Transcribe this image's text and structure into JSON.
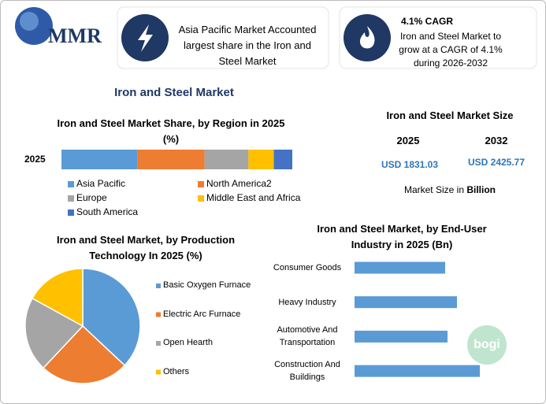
{
  "header": {
    "logo": "MMR",
    "highlight_1": "Asia Pacific Market Accounted largest share in the Iron and Steel Market",
    "highlight_2_title": "4.1% CAGR",
    "highlight_2_text": "Iron and Steel Market to grow at a CAGR of 4.1% during 2026-2032"
  },
  "title": "Iron and Steel Market",
  "market_size": {
    "title": "Iron and Steel Market Size",
    "years": [
      "2025",
      "2032"
    ],
    "values": [
      "USD 1831.03",
      "USD 2425.77"
    ],
    "note": "Market Size in",
    "unit": "Billion"
  },
  "watermark": "bogi",
  "chart_data": [
    {
      "type": "stacked-bar",
      "title": "Iron and Steel Market Share, by Region in 2025 (%)",
      "categories": [
        "2025"
      ],
      "series": [
        {
          "name": "Asia Pacific",
          "color": "#5b9bd5",
          "values": [
            33
          ]
        },
        {
          "name": "North America2",
          "color": "#ed7d31",
          "values": [
            29
          ]
        },
        {
          "name": "Europe",
          "color": "#a5a5a5",
          "values": [
            19
          ]
        },
        {
          "name": "Middle East and Africa",
          "color": "#ffc000",
          "values": [
            11
          ]
        },
        {
          "name": "South America",
          "color": "#4472c4",
          "values": [
            8
          ]
        }
      ]
    },
    {
      "type": "pie",
      "title": "Iron and Steel Market, by Production Technology In 2025 (%)",
      "categories": [
        "Basic Oxygen Furnace",
        "Electric Arc Furnace",
        "Open Hearth",
        "Others"
      ],
      "values": [
        37,
        25,
        21,
        17
      ],
      "colors": [
        "#5b9bd5",
        "#ed7d31",
        "#a5a5a5",
        "#ffc000"
      ]
    },
    {
      "type": "hbar",
      "title": "Iron and Steel Market, by End-User Industry in 2025 (Bn)",
      "categories": [
        "Consumer Goods",
        "Heavy Industry",
        "Automotive And Transportation",
        "Construction And Buildings"
      ],
      "values": [
        11.5,
        13.0,
        11.8,
        15.9
      ],
      "color": "#5b9bd5"
    }
  ]
}
